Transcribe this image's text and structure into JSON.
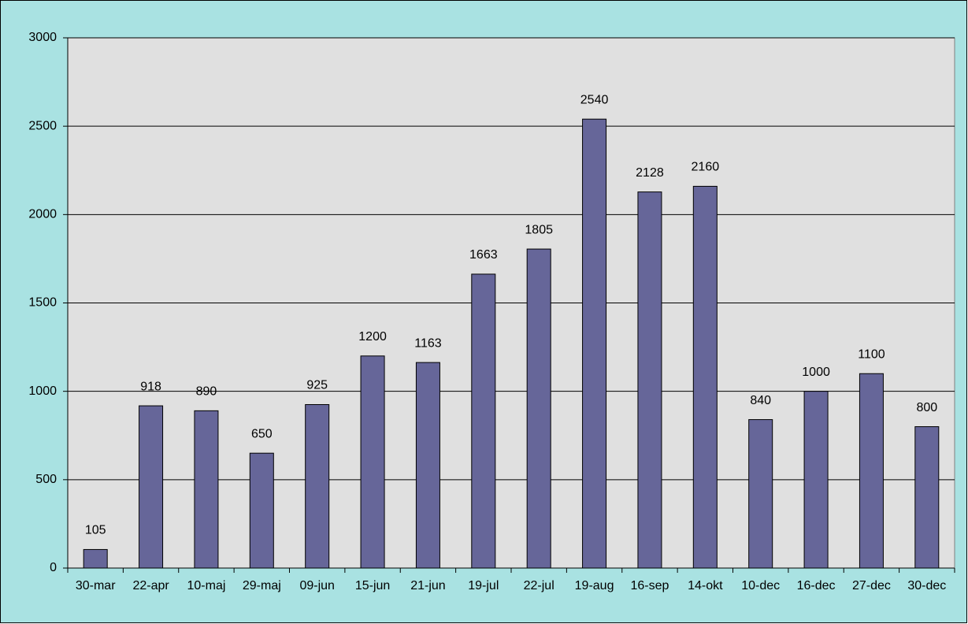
{
  "chart_data": {
    "type": "bar",
    "categories": [
      "30-mar",
      "22-apr",
      "10-maj",
      "29-maj",
      "09-jun",
      "15-jun",
      "21-jun",
      "19-jul",
      "22-jul",
      "19-aug",
      "16-sep",
      "14-okt",
      "10-dec",
      "16-dec",
      "27-dec",
      "30-dec"
    ],
    "values": [
      105,
      918,
      890,
      650,
      925,
      1200,
      1163,
      1663,
      1805,
      2540,
      2128,
      2160,
      840,
      1000,
      1100,
      800
    ],
    "color": "#666699",
    "ylim": [
      0,
      3000
    ],
    "yticks": [
      0,
      500,
      1000,
      1500,
      2000,
      2500,
      3000
    ],
    "grid": true
  }
}
